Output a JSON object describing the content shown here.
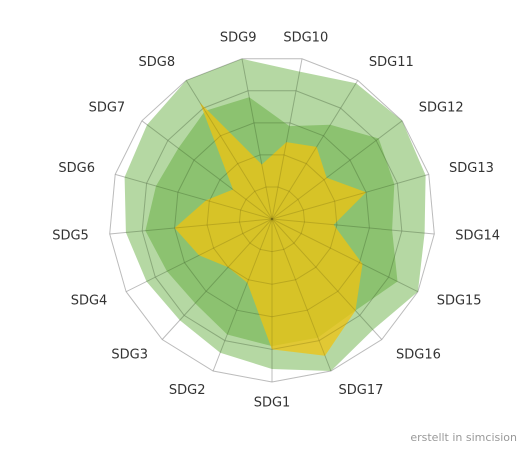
{
  "chart_data": {
    "type": "radar",
    "categories": [
      "SDG1",
      "SDG2",
      "SDG3",
      "SDG4",
      "SDG5",
      "SDG6",
      "SDG7",
      "SDG8",
      "SDG9",
      "SDG10",
      "SDG11",
      "SDG12",
      "SDG13",
      "SDG14",
      "SDG15",
      "SDG16",
      "SDG17"
    ],
    "rmax": 5,
    "rings": 5,
    "series": [
      {
        "values": [
          4.6,
          4.4,
          4.2,
          4.3,
          4.5,
          4.7,
          4.8,
          5.0,
          5.0,
          4.6,
          4.9,
          5.0,
          4.9,
          4.7,
          5.0,
          4.6,
          5.0
        ],
        "color": "#5aa832",
        "opacity": 0.45
      },
      {
        "values": [
          3.9,
          3.8,
          3.5,
          3.6,
          3.9,
          3.7,
          3.6,
          3.9,
          3.8,
          2.9,
          3.4,
          4.1,
          3.9,
          3.7,
          4.3,
          3.8,
          3.9
        ],
        "color": "#5aa832",
        "opacity": 0.45
      },
      {
        "values": [
          4.0,
          2.1,
          2.0,
          2.5,
          3.0,
          2.1,
          1.5,
          4.2,
          1.7,
          2.4,
          2.6,
          2.1,
          3.0,
          1.9,
          3.1,
          3.8,
          4.5
        ],
        "color": "#f0c30f",
        "opacity": 0.75
      }
    ]
  },
  "watermark": "erstellt in simcision"
}
